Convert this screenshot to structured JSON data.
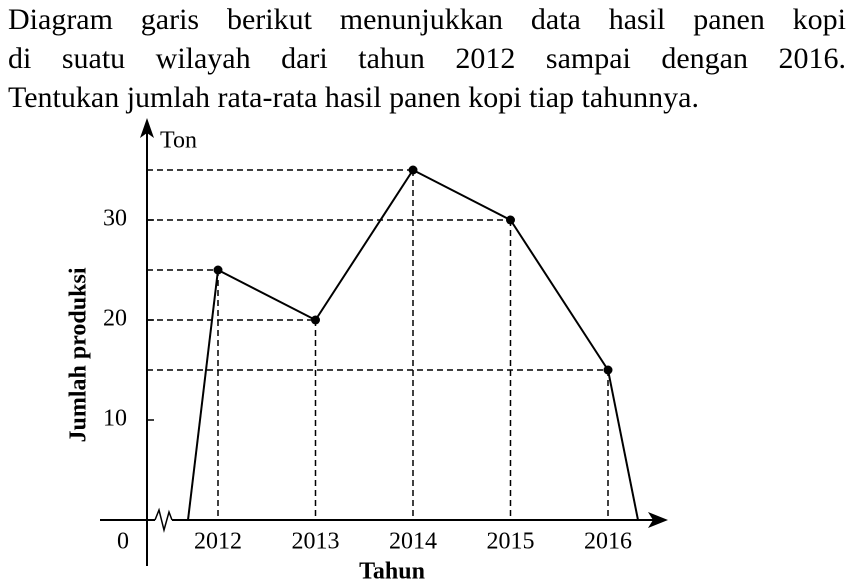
{
  "question": {
    "lines": [
      "Diagram garis berikut menunjukkan data hasil panen kopi",
      "di suatu wilayah dari tahun 2012 sampai dengan 2016.",
      "Tentukan jumlah rata-rata hasil panen kopi tiap tahunnya."
    ]
  },
  "chart_data": {
    "type": "line",
    "y_unit": "Ton",
    "y_label": "Jumlah produksi",
    "x_label": "Tahun",
    "categories": [
      "2012",
      "2013",
      "2014",
      "2015",
      "2016"
    ],
    "values": [
      25,
      20,
      35,
      30,
      15
    ],
    "color": "#000000",
    "ylim": [
      0,
      40
    ],
    "yticks": [
      0,
      10,
      20,
      30
    ]
  }
}
